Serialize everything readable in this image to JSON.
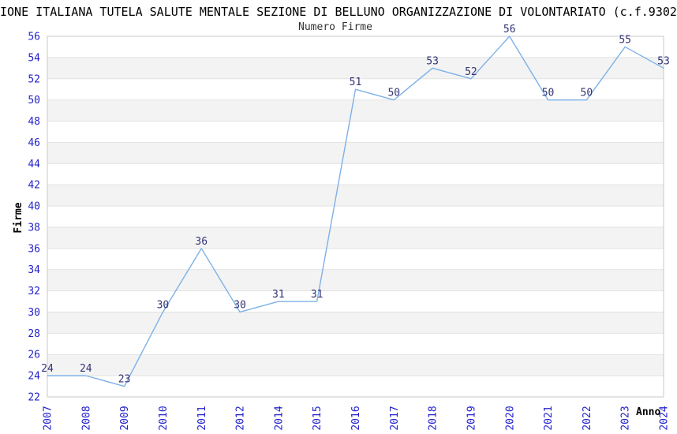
{
  "title": "IONE ITALIANA TUTELA SALUTE MENTALE SEZIONE DI BELLUNO ORGANIZZAZIONE DI VOLONTARIATO (c.f.9302",
  "subtitle": "Numero Firme",
  "chart_data": {
    "type": "line",
    "title": "Numero Firme",
    "xlabel": "Anno",
    "ylabel": "Firme",
    "categories": [
      "2007",
      "2008",
      "2009",
      "2010",
      "2011",
      "2012",
      "2014",
      "2015",
      "2016",
      "2017",
      "2018",
      "2019",
      "2020",
      "2021",
      "2022",
      "2023",
      "2024"
    ],
    "values": [
      24,
      24,
      23,
      30,
      36,
      30,
      31,
      31,
      51,
      50,
      53,
      52,
      56,
      50,
      50,
      55,
      53
    ],
    "ylim": [
      22,
      56
    ],
    "ytick_step": 2,
    "grid": true,
    "legend": "none",
    "band_fill": "alternating horizontal bands",
    "colors": {
      "line": "#7DB1E8",
      "tick_label": "#2222CC",
      "data_label": "#333377",
      "gridline": "#E2E2E2",
      "band": "#F3F3F3",
      "plot_border": "#C8C8C8",
      "title": "#000000",
      "subtitle": "#333333",
      "axis_title": "#000000"
    }
  }
}
